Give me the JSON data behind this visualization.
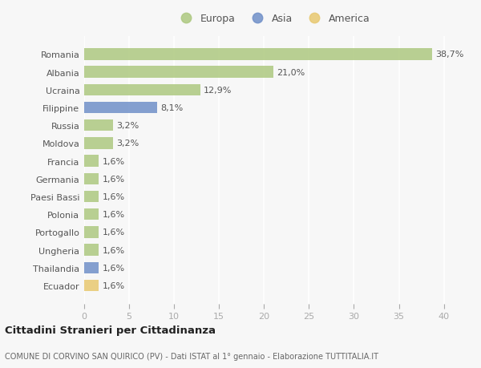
{
  "categories": [
    "Romania",
    "Albania",
    "Ucraina",
    "Filippine",
    "Russia",
    "Moldova",
    "Francia",
    "Germania",
    "Paesi Bassi",
    "Polonia",
    "Portogallo",
    "Ungheria",
    "Thailandia",
    "Ecuador"
  ],
  "values": [
    38.7,
    21.0,
    12.9,
    8.1,
    3.2,
    3.2,
    1.6,
    1.6,
    1.6,
    1.6,
    1.6,
    1.6,
    1.6,
    1.6
  ],
  "labels": [
    "38,7%",
    "21,0%",
    "12,9%",
    "8,1%",
    "3,2%",
    "3,2%",
    "1,6%",
    "1,6%",
    "1,6%",
    "1,6%",
    "1,6%",
    "1,6%",
    "1,6%",
    "1,6%"
  ],
  "continents": [
    "Europa",
    "Europa",
    "Europa",
    "Asia",
    "Europa",
    "Europa",
    "Europa",
    "Europa",
    "Europa",
    "Europa",
    "Europa",
    "Europa",
    "Asia",
    "America"
  ],
  "colors": {
    "Europa": "#adc880",
    "Asia": "#7090c8",
    "America": "#e8c870"
  },
  "xlim": [
    0,
    42
  ],
  "xticks": [
    0,
    5,
    10,
    15,
    20,
    25,
    30,
    35,
    40
  ],
  "title": "Cittadini Stranieri per Cittadinanza",
  "subtitle": "COMUNE DI CORVINO SAN QUIRICO (PV) - Dati ISTAT al 1° gennaio - Elaborazione TUTTITALIA.IT",
  "background_color": "#f7f7f7",
  "grid_color": "#ffffff",
  "bar_height": 0.65,
  "label_fontsize": 8,
  "ytick_fontsize": 8,
  "xtick_fontsize": 8
}
